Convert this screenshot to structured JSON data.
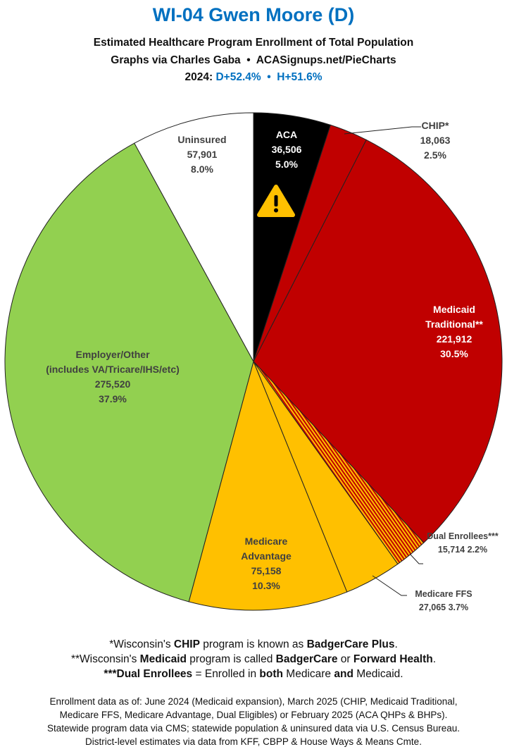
{
  "header": {
    "title": "WI-04 Gwen Moore (D)",
    "subtitle": "Estimated Healthcare Program Enrollment of Total Population",
    "credit": "Graphs via Charles Gaba  •  ACASignups.net/PieCharts",
    "year_label": "2024:",
    "partisan": "D+52.4%  •  H+51.6%"
  },
  "chart_data": {
    "type": "pie",
    "title": "WI-04 Gwen Moore (D)",
    "start": "12 o'clock, clockwise",
    "slices": [
      {
        "name": "ACA",
        "value": 36506,
        "pct": "5.0%",
        "color": "#000000",
        "warning_icon": true
      },
      {
        "name": "CHIP*",
        "value": 18063,
        "pct": "2.5%",
        "color": "#c00000"
      },
      {
        "name": "Medicaid Traditional**",
        "value": 221912,
        "pct": "30.5%",
        "color": "#c00000"
      },
      {
        "name": "Dual Enrollees***",
        "value": 15714,
        "pct": "2.2%",
        "color": "hatched #c00000/#ffc000"
      },
      {
        "name": "Medicare FFS",
        "value": 27065,
        "pct": "3.7%",
        "color": "#ffc000"
      },
      {
        "name": "Medicare Advantage",
        "value": 75158,
        "pct": "10.3%",
        "color": "#ffc000"
      },
      {
        "name": "Employer/Other (includes VA/Tricare/IHS/etc)",
        "value": 275520,
        "pct": "37.9%",
        "color": "#92d050"
      },
      {
        "name": "Uninsured",
        "value": 57901,
        "pct": "8.0%",
        "color": "#ffffff"
      }
    ],
    "labels": {
      "aca": [
        "ACA",
        "36,506",
        "5.0%"
      ],
      "chip": [
        "CHIP*",
        "18,063",
        "2.5%"
      ],
      "medicaid": [
        "Medicaid",
        "Traditional**",
        "221,912",
        "30.5%"
      ],
      "dual": [
        "Dual Enrollees***",
        "15,714 2.2%"
      ],
      "ffs": [
        "Medicare FFS",
        "27,065 3.7%"
      ],
      "ma": [
        "Medicare",
        "Advantage",
        "75,158",
        "10.3%"
      ],
      "employer": [
        "Employer/Other",
        "(includes VA/Tricare/IHS/etc)",
        "275,520",
        "37.9%"
      ],
      "uninsured": [
        "Uninsured",
        "57,901",
        "8.0%"
      ]
    }
  },
  "notes": [
    [
      "*Wisconsin's ",
      "CHIP",
      " program is known as ",
      "BadgerCare Plus",
      "."
    ],
    [
      "**Wisconsin's ",
      "Medicaid",
      " program is called ",
      "BadgerCare",
      " or ",
      "Forward Health",
      "."
    ],
    [
      "",
      "***Dual Enrollees",
      " = Enrolled in ",
      "both",
      " Medicare ",
      "and",
      " Medicaid."
    ]
  ],
  "sources": [
    "Enrollment data as of: June 2024 (Medicaid expansion), March 2025 (CHIP, Medicaid Traditional,",
    "Medicare FFS, Medicare Advantage, Dual Eligibles) or February 2025 (ACA QHPs & BHPs).",
    "Statewide program data via CMS; statewide population & uninsured data via U.S. Census Bureau.",
    "District-level estimates via data from KFF, CBPP & House Ways & Means Cmte."
  ]
}
